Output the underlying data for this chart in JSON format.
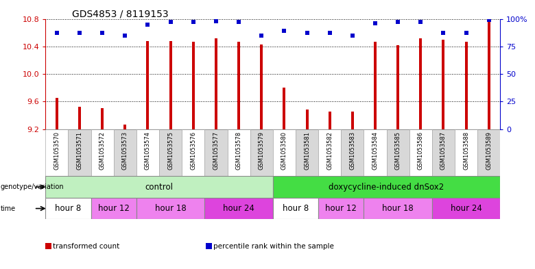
{
  "title": "GDS4853 / 8119153",
  "samples": [
    "GSM1053570",
    "GSM1053571",
    "GSM1053572",
    "GSM1053573",
    "GSM1053574",
    "GSM1053575",
    "GSM1053576",
    "GSM1053577",
    "GSM1053578",
    "GSM1053579",
    "GSM1053580",
    "GSM1053581",
    "GSM1053582",
    "GSM1053583",
    "GSM1053584",
    "GSM1053585",
    "GSM1053586",
    "GSM1053587",
    "GSM1053588",
    "GSM1053589"
  ],
  "transformed_counts": [
    9.65,
    9.52,
    9.5,
    9.27,
    10.48,
    10.48,
    10.47,
    10.52,
    10.47,
    10.43,
    9.8,
    9.48,
    9.45,
    9.45,
    10.47,
    10.42,
    10.52,
    10.5,
    10.47,
    10.78
  ],
  "percentile_ranks": [
    87,
    87,
    87,
    85,
    95,
    97,
    97,
    98,
    97,
    85,
    89,
    87,
    87,
    85,
    96,
    97,
    97,
    87,
    87,
    99
  ],
  "ylim_left": [
    9.2,
    10.8
  ],
  "ylim_right": [
    0,
    100
  ],
  "yticks_left": [
    9.2,
    9.6,
    10.0,
    10.4,
    10.8
  ],
  "yticks_right": [
    0,
    25,
    50,
    75,
    100
  ],
  "bar_color": "#cc0000",
  "dot_color": "#0000cc",
  "genotype_groups": [
    {
      "label": "control",
      "start": 0,
      "end": 9,
      "color": "#c0f0c0"
    },
    {
      "label": "doxycycline-induced dnSox2",
      "start": 10,
      "end": 19,
      "color": "#44dd44"
    }
  ],
  "time_group_defs": [
    {
      "label": "hour 8",
      "start": 0,
      "end": 1,
      "color": "#ffffff"
    },
    {
      "label": "hour 12",
      "start": 2,
      "end": 3,
      "color": "#ee82ee"
    },
    {
      "label": "hour 18",
      "start": 4,
      "end": 6,
      "color": "#ee82ee"
    },
    {
      "label": "hour 24",
      "start": 7,
      "end": 9,
      "color": "#dd44dd"
    },
    {
      "label": "hour 8",
      "start": 10,
      "end": 11,
      "color": "#ffffff"
    },
    {
      "label": "hour 12",
      "start": 12,
      "end": 13,
      "color": "#ee82ee"
    },
    {
      "label": "hour 18",
      "start": 14,
      "end": 16,
      "color": "#ee82ee"
    },
    {
      "label": "hour 24",
      "start": 17,
      "end": 19,
      "color": "#dd44dd"
    }
  ],
  "legend_items": [
    {
      "color": "#cc0000",
      "label": "transformed count"
    },
    {
      "color": "#0000cc",
      "label": "percentile rank within the sample"
    }
  ],
  "sample_col_colors": [
    "#ffffff",
    "#d8d8d8",
    "#ffffff",
    "#d8d8d8",
    "#ffffff",
    "#d8d8d8",
    "#ffffff",
    "#d8d8d8",
    "#ffffff",
    "#d8d8d8",
    "#ffffff",
    "#d8d8d8",
    "#ffffff",
    "#d8d8d8",
    "#ffffff",
    "#d8d8d8",
    "#ffffff",
    "#d8d8d8",
    "#ffffff",
    "#d8d8d8"
  ]
}
